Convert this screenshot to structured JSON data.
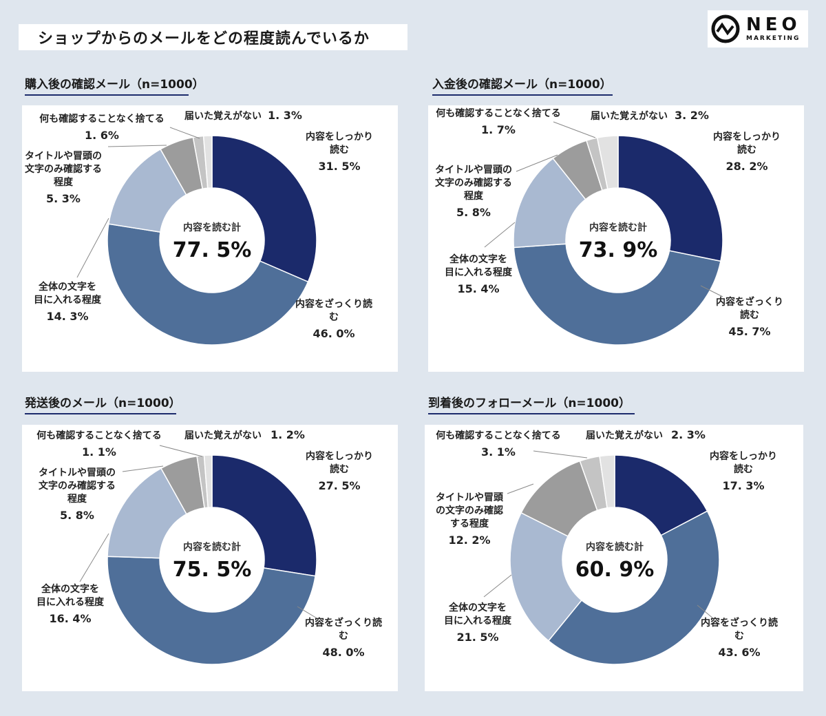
{
  "title": "ショップからのメールをどの程度読んでいるか",
  "logo": {
    "word": "NEO",
    "sub": "MARKETING"
  },
  "colors": {
    "read_carefully": "#1b2a6b",
    "skim": "#4f6f99",
    "glance_whole": "#a9b9d1",
    "title_only": "#9c9c9c",
    "discard": "#c4c4c4",
    "not_received": "#e2e2e2"
  },
  "chart_data": [
    {
      "type": "pie",
      "title": "購入後の確認メール（n=1000）",
      "center_label": "内容を読む計",
      "center_value": "77. 5%",
      "slices": [
        {
          "lines": [
            "内容をしっかり",
            "読む"
          ],
          "value": 31.5,
          "pct": "31. 5%",
          "color": "#1b2a6b"
        },
        {
          "lines": [
            "内容をざっくり読",
            "む"
          ],
          "value": 46.0,
          "pct": "46. 0%",
          "color": "#4f6f99"
        },
        {
          "lines": [
            "全体の文字を",
            "目に入れる程度"
          ],
          "value": 14.3,
          "pct": "14. 3%",
          "color": "#a9b9d1"
        },
        {
          "lines": [
            "タイトルや冒頭の",
            "文字のみ確認する",
            "程度"
          ],
          "value": 5.3,
          "pct": "5. 3%",
          "color": "#9c9c9c"
        },
        {
          "lines": [
            "何も確認することなく捨てる"
          ],
          "value": 1.6,
          "pct": "1. 6%",
          "color": "#c4c4c4"
        },
        {
          "lines": [
            "届いた覚えがない"
          ],
          "value": 1.3,
          "pct": "1. 3%",
          "color": "#e2e2e2"
        }
      ]
    },
    {
      "type": "pie",
      "title": "入金後の確認メール（n=1000）",
      "center_label": "内容を読む計",
      "center_value": "73. 9%",
      "slices": [
        {
          "lines": [
            "内容をしっかり",
            "読む"
          ],
          "value": 28.2,
          "pct": "28. 2%",
          "color": "#1b2a6b"
        },
        {
          "lines": [
            "内容をざっくり",
            "読む"
          ],
          "value": 45.7,
          "pct": "45. 7%",
          "color": "#4f6f99"
        },
        {
          "lines": [
            "全体の文字を",
            "目に入れる程度"
          ],
          "value": 15.4,
          "pct": "15. 4%",
          "color": "#a9b9d1"
        },
        {
          "lines": [
            "タイトルや冒頭の",
            "文字のみ確認する",
            "程度"
          ],
          "value": 5.8,
          "pct": "5. 8%",
          "color": "#9c9c9c"
        },
        {
          "lines": [
            "何も確認することなく捨てる"
          ],
          "value": 1.7,
          "pct": "1. 7%",
          "color": "#c4c4c4"
        },
        {
          "lines": [
            "届いた覚えがない"
          ],
          "value": 3.2,
          "pct": "3. 2%",
          "color": "#e2e2e2"
        }
      ]
    },
    {
      "type": "pie",
      "title": "発送後のメール（n=1000）",
      "center_label": "内容を読む計",
      "center_value": "75. 5%",
      "slices": [
        {
          "lines": [
            "内容をしっかり",
            "読む"
          ],
          "value": 27.5,
          "pct": "27. 5%",
          "color": "#1b2a6b"
        },
        {
          "lines": [
            "内容をざっくり読",
            "む"
          ],
          "value": 48.0,
          "pct": "48. 0%",
          "color": "#4f6f99"
        },
        {
          "lines": [
            "全体の文字を",
            "目に入れる程度"
          ],
          "value": 16.4,
          "pct": "16. 4%",
          "color": "#a9b9d1"
        },
        {
          "lines": [
            "タイトルや冒頭の",
            "文字のみ確認する",
            "程度"
          ],
          "value": 5.8,
          "pct": "5. 8%",
          "color": "#9c9c9c"
        },
        {
          "lines": [
            "何も確認することなく捨てる"
          ],
          "value": 1.1,
          "pct": "1. 1%",
          "color": "#c4c4c4"
        },
        {
          "lines": [
            "届いた覚えがない"
          ],
          "value": 1.2,
          "pct": "1. 2%",
          "color": "#e2e2e2"
        }
      ]
    },
    {
      "type": "pie",
      "title": "到着後のフォローメール（n=1000）",
      "center_label": "内容を読む計",
      "center_value": "60. 9%",
      "slices": [
        {
          "lines": [
            "内容をしっかり",
            "読む"
          ],
          "value": 17.3,
          "pct": "17. 3%",
          "color": "#1b2a6b"
        },
        {
          "lines": [
            "内容をざっくり読",
            "む"
          ],
          "value": 43.6,
          "pct": "43. 6%",
          "color": "#4f6f99"
        },
        {
          "lines": [
            "全体の文字を",
            "目に入れる程度"
          ],
          "value": 21.5,
          "pct": "21. 5%",
          "color": "#a9b9d1"
        },
        {
          "lines": [
            "タイトルや冒頭",
            "の文字のみ確認",
            "する程度"
          ],
          "value": 12.2,
          "pct": "12. 2%",
          "color": "#9c9c9c"
        },
        {
          "lines": [
            "何も確認することなく捨てる"
          ],
          "value": 3.1,
          "pct": "3. 1%",
          "color": "#c4c4c4"
        },
        {
          "lines": [
            "届いた覚えがない"
          ],
          "value": 2.3,
          "pct": "2. 3%",
          "color": "#e2e2e2"
        }
      ]
    }
  ]
}
